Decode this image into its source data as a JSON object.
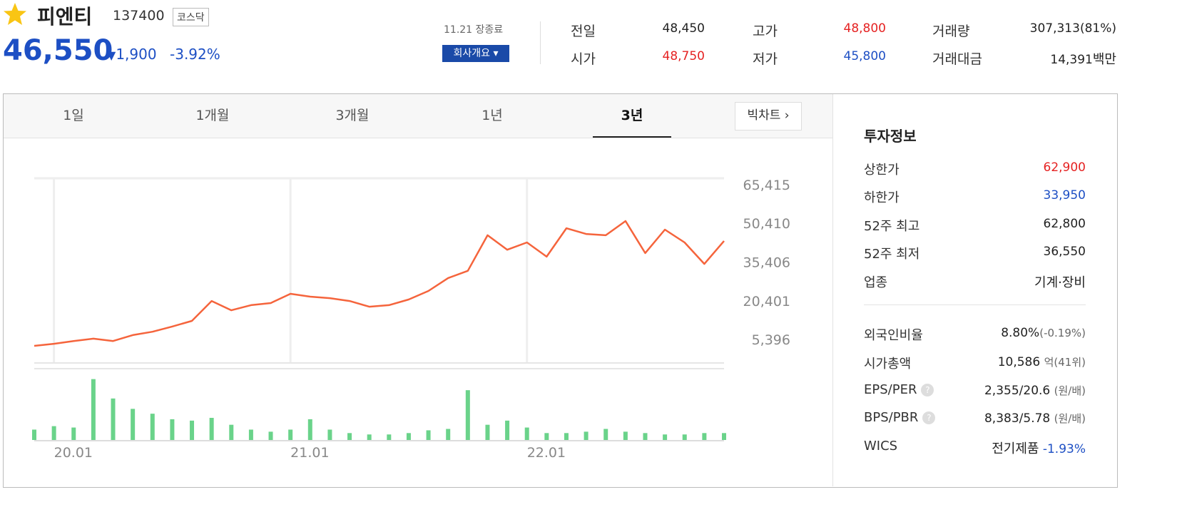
{
  "header": {
    "name": "피엔티",
    "code": "137400",
    "market": "코스닥",
    "price": "46,550",
    "change": "1,900",
    "change_rate": "-3.92%",
    "status": "11.21 장종료",
    "company_button": "회사개요"
  },
  "summary": [
    {
      "label": "전일",
      "value": "48,450"
    },
    {
      "label": "고가",
      "value": "48,800"
    },
    {
      "label": "거래량",
      "value": "307,313(81%)"
    },
    {
      "label": "시가",
      "value": "48,750"
    },
    {
      "label": "저가",
      "value": "45,800"
    },
    {
      "label": "거래대금",
      "value": "14,391",
      "unit": "백만"
    }
  ],
  "tabs": [
    "1일",
    "1개월",
    "3개월",
    "1년",
    "3년"
  ],
  "bigchart_button": "빅차트",
  "chart_data": [
    {
      "type": "line",
      "color": "#f5643c",
      "categories": [
        null,
        "20.01",
        null,
        null,
        null,
        null,
        null,
        null,
        null,
        null,
        null,
        null,
        null,
        "21.01",
        null,
        null,
        null,
        null,
        null,
        null,
        null,
        null,
        null,
        null,
        null,
        "22.01",
        null,
        null,
        null,
        null,
        null,
        null,
        null,
        null,
        null,
        null
      ],
      "values": [
        2900,
        3700,
        4800,
        5700,
        4800,
        7100,
        8400,
        10400,
        12600,
        20300,
        16700,
        18700,
        19500,
        23100,
        22000,
        21400,
        20300,
        18100,
        18700,
        20900,
        24200,
        29200,
        32000,
        45800,
        40200,
        43000,
        37500,
        48500,
        46300,
        45800,
        51300,
        38900,
        48000,
        43000,
        34700,
        43600
      ],
      "ylim": [
        -3450,
        67900
      ],
      "yticks": [
        {
          "value": 5396,
          "label": "5,396"
        },
        {
          "value": 20401,
          "label": "20,401"
        },
        {
          "value": 35406,
          "label": "35,406"
        },
        {
          "value": 50410,
          "label": "50,410"
        },
        {
          "value": 65415,
          "label": "65,415"
        }
      ],
      "grid": true
    },
    {
      "type": "bar",
      "color": "#6ad38a",
      "values": [
        15,
        20,
        18,
        88,
        60,
        45,
        38,
        30,
        28,
        32,
        22,
        15,
        12,
        15,
        30,
        15,
        10,
        8,
        8,
        10,
        14,
        16,
        72,
        22,
        28,
        18,
        10,
        10,
        12,
        16,
        12,
        10,
        8,
        8,
        10,
        10
      ],
      "ylim": [
        0,
        100
      ]
    }
  ],
  "investment": {
    "title": "투자정보",
    "rows": [
      {
        "label": "상한가",
        "value": "62,900"
      },
      {
        "label": "하한가",
        "value": "33,950"
      },
      {
        "label": "52주 최고",
        "value": "62,800"
      },
      {
        "label": "52주 최저",
        "value": "36,550"
      },
      {
        "label": "업종",
        "value": "기계·장비"
      }
    ],
    "rows2": [
      {
        "label": "외국인비율",
        "value": "8.80%",
        "note": "(-0.19%)"
      },
      {
        "label": "시가총액",
        "value": "10,586",
        "note": "억(41위)"
      },
      {
        "label": "EPS/PER",
        "value": "2,355/20.6",
        "note": "(원/배)"
      },
      {
        "label": "BPS/PBR",
        "value": "8,383/5.78",
        "note": "(원/배)"
      },
      {
        "label": "WICS",
        "value": "전기제품",
        "note": "-1.93%"
      }
    ]
  }
}
